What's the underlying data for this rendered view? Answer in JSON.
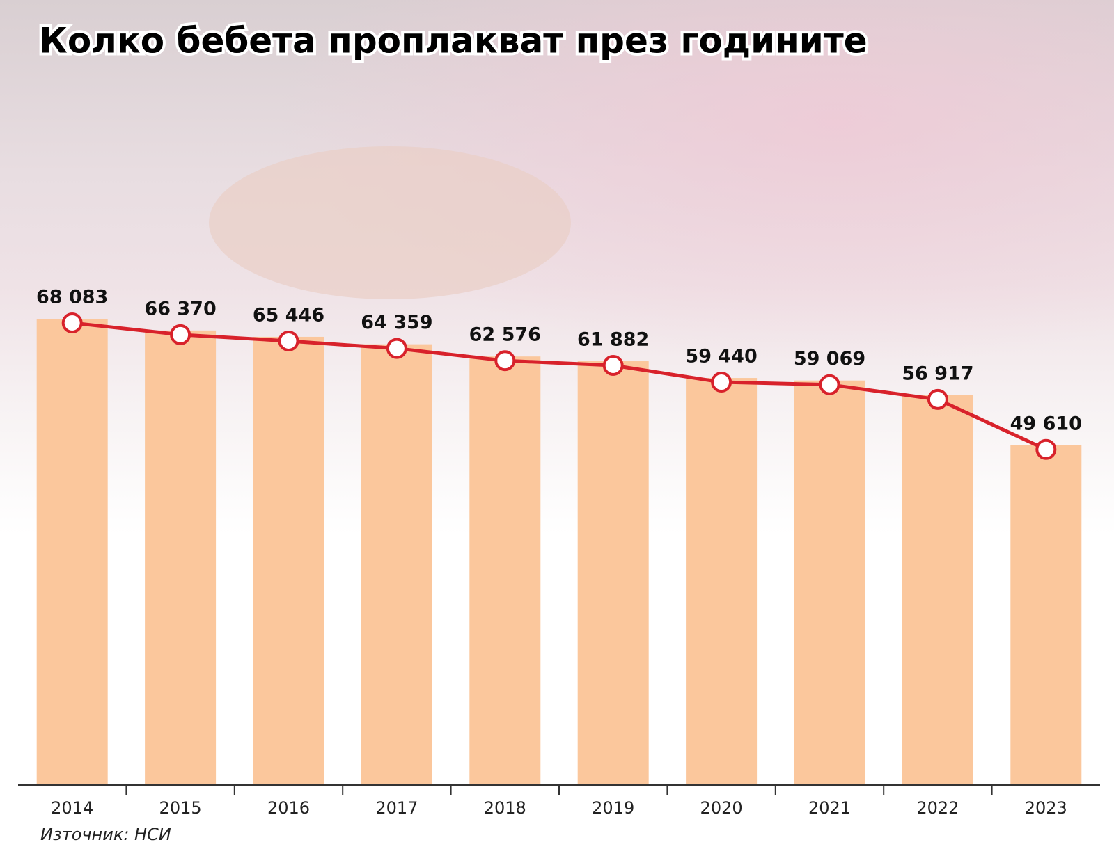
{
  "chart_data": {
    "type": "bar-line",
    "title": "Колко бебета проплакват през годините",
    "source": "Източник: НСИ",
    "categories": [
      "2014",
      "2015",
      "2016",
      "2017",
      "2018",
      "2019",
      "2020",
      "2021",
      "2022",
      "2023"
    ],
    "values": [
      68083,
      66370,
      65446,
      64359,
      62576,
      61882,
      59440,
      59069,
      56917,
      49610
    ],
    "value_labels": [
      "68 083",
      "66 370",
      "65 446",
      "64 359",
      "62 576",
      "61 882",
      "59 440",
      "59 069",
      "56 917",
      "49 610"
    ],
    "bar_color": "#fbc79c",
    "line_color": "#d8222b"
  }
}
